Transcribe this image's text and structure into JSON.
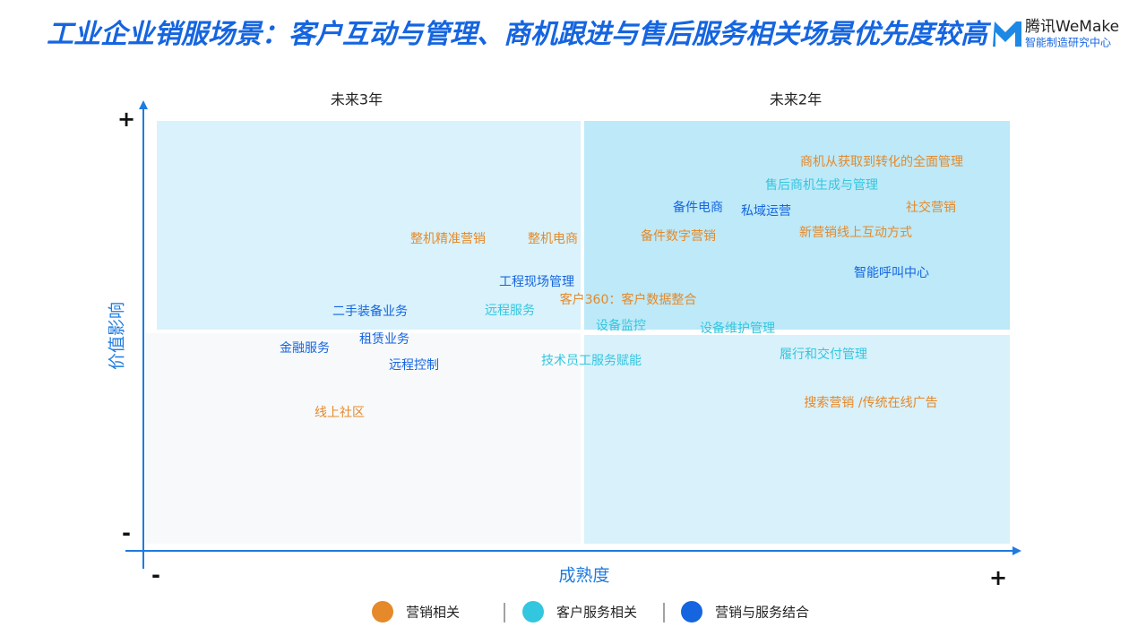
{
  "header": {
    "title": "工业企业销服场景：客户互动与管理、商机跟进与售后服务相关场景优先度较高",
    "logo_name": "腾讯WeMake",
    "logo_sub": "智能制造研究中心"
  },
  "quadrant_labels": [
    "未来3年",
    "未来2年"
  ],
  "axes": {
    "y_label": "价值影响",
    "x_label": "成熟度",
    "plus": "+",
    "minus": "-"
  },
  "groups": [
    {
      "name": "营销相关",
      "color": "#e5892a",
      "items": [
        "商机从获取到转化的全面管理",
        "社交营销",
        "新营销线上互动方式",
        "备件数字营销",
        "整机电商",
        "整机精准营销",
        "客户360：客户数据整合",
        "搜索营销 /传统在线广告",
        "线上社区"
      ]
    },
    {
      "name": "客户服务相关",
      "color": "#33c6df",
      "items": [
        "售后商机生成与管理",
        "远程服务",
        "设备监控",
        "设备维护管理",
        "技术员工服务赋能",
        "履行和交付管理"
      ]
    },
    {
      "name": "营销与服务结合",
      "color": "#1565e0",
      "items": [
        "备件电商",
        "私域运营",
        "智能呼叫中心",
        "工程现场管理",
        "二手装备业务",
        "租赁业务",
        "金融服务",
        "远程控制"
      ]
    }
  ]
}
